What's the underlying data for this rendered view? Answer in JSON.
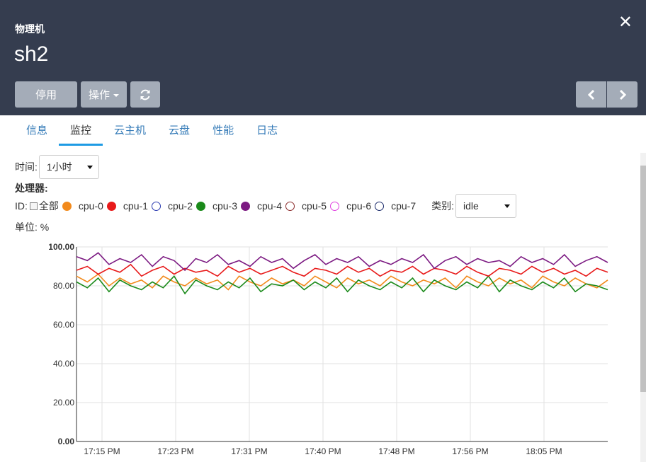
{
  "header": {
    "subtitle": "物理机",
    "title": "sh2",
    "close_icon": "close-icon",
    "buttons": {
      "disable": "停用",
      "operations": "操作",
      "refresh_icon": "refresh-icon"
    },
    "pager": {
      "prev_icon": "chevron-left-icon",
      "next_icon": "chevron-right-icon"
    }
  },
  "tabs": [
    {
      "label": "信息"
    },
    {
      "label": "监控",
      "active": true
    },
    {
      "label": "云主机"
    },
    {
      "label": "云盘"
    },
    {
      "label": "性能"
    },
    {
      "label": "日志"
    }
  ],
  "controls": {
    "time_label": "时间:",
    "time_value": "1小时",
    "processor_label": "处理器:",
    "id_label": "ID:",
    "all_label": "全部",
    "class_label": "类别:",
    "class_value": "idle",
    "unit_label": "单位: %"
  },
  "legend": [
    {
      "name": "cpu-0",
      "color": "#f28a1c",
      "filled": true
    },
    {
      "name": "cpu-1",
      "color": "#e81a1a",
      "filled": true
    },
    {
      "name": "cpu-2",
      "color": "#2a3ab0",
      "filled": false
    },
    {
      "name": "cpu-3",
      "color": "#1a8a1a",
      "filled": true
    },
    {
      "name": "cpu-4",
      "color": "#7c1a82",
      "filled": true
    },
    {
      "name": "cpu-5",
      "color": "#8a2a2a",
      "filled": false
    },
    {
      "name": "cpu-6",
      "color": "#e040e0",
      "filled": false
    },
    {
      "name": "cpu-7",
      "color": "#1a2a6a",
      "filled": false
    }
  ],
  "chart_data": {
    "type": "line",
    "ylim": [
      0,
      100
    ],
    "y_ticks": [
      "100.00",
      "80.00",
      "60.00",
      "40.00",
      "20.00",
      "0.00"
    ],
    "x_ticks": [
      "17:15 PM",
      "17:23 PM",
      "17:31 PM",
      "17:40 PM",
      "17:48 PM",
      "17:56 PM",
      "18:05 PM"
    ],
    "grid": true,
    "series": [
      {
        "name": "cpu-4",
        "color": "#7c1a82",
        "values": [
          95,
          93,
          97,
          91,
          94,
          92,
          96,
          90,
          95,
          93,
          88,
          94,
          92,
          96,
          91,
          93,
          90,
          95,
          92,
          94,
          89,
          93,
          96,
          91,
          94,
          92,
          95,
          90,
          93,
          91,
          94,
          92,
          96,
          89,
          93,
          95,
          91,
          94,
          92,
          93,
          90,
          95,
          92,
          94,
          91,
          96,
          90,
          93,
          95,
          92
        ]
      },
      {
        "name": "cpu-1",
        "color": "#e81a1a",
        "values": [
          88,
          90,
          86,
          89,
          87,
          91,
          85,
          88,
          90,
          86,
          89,
          87,
          88,
          85,
          90,
          87,
          89,
          86,
          88,
          90,
          87,
          85,
          89,
          88,
          86,
          90,
          87,
          89,
          85,
          88,
          87,
          90,
          86,
          89,
          88,
          86,
          90,
          87,
          85,
          89,
          88,
          86,
          90,
          87,
          89,
          86,
          88,
          85,
          89,
          87
        ]
      },
      {
        "name": "cpu-0",
        "color": "#f28a1c",
        "values": [
          85,
          82,
          86,
          80,
          84,
          81,
          83,
          79,
          85,
          82,
          80,
          84,
          81,
          83,
          78,
          85,
          82,
          80,
          84,
          81,
          83,
          80,
          85,
          82,
          79,
          84,
          81,
          83,
          80,
          85,
          82,
          80,
          83,
          81,
          84,
          79,
          85,
          82,
          80,
          84,
          81,
          83,
          79,
          85,
          82,
          80,
          84,
          81,
          79,
          83
        ]
      },
      {
        "name": "cpu-3",
        "color": "#1a8a1a",
        "values": [
          82,
          79,
          84,
          77,
          83,
          80,
          78,
          82,
          79,
          85,
          76,
          83,
          80,
          78,
          82,
          79,
          84,
          77,
          81,
          80,
          83,
          78,
          82,
          79,
          84,
          77,
          83,
          80,
          78,
          82,
          79,
          84,
          77,
          83,
          80,
          78,
          82,
          79,
          85,
          77,
          83,
          80,
          78,
          82,
          79,
          84,
          77,
          81,
          80,
          78
        ]
      }
    ]
  }
}
